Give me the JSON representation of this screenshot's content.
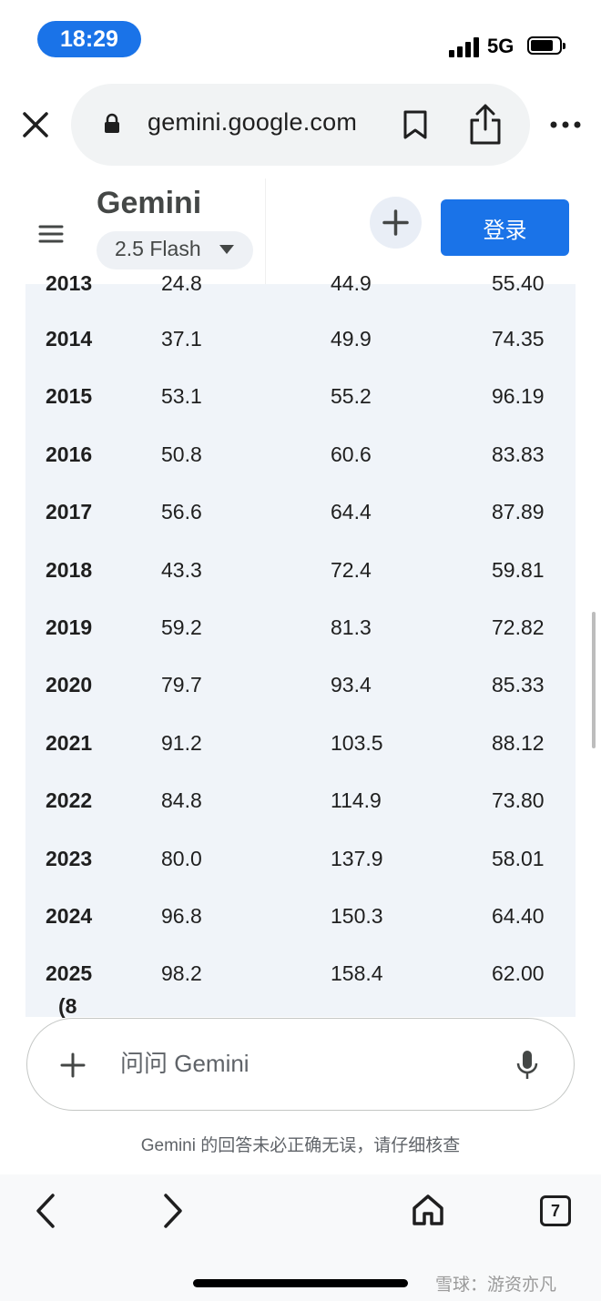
{
  "status_bar": {
    "time": "18:29",
    "network": "5G"
  },
  "browser": {
    "url": "gemini.google.com",
    "tabs_count": "7"
  },
  "header": {
    "title": "Gemini",
    "model": "2.5 Flash",
    "login_label": "登录"
  },
  "table": {
    "partial_top_row": {
      "year": "2013",
      "c1": "24.8",
      "c2": "44.9",
      "c3": "55.40"
    },
    "rows": [
      {
        "year": "2014",
        "c1": "37.1",
        "c2": "49.9",
        "c3": "74.35"
      },
      {
        "year": "2015",
        "c1": "53.1",
        "c2": "55.2",
        "c3": "96.19"
      },
      {
        "year": "2016",
        "c1": "50.8",
        "c2": "60.6",
        "c3": "83.83"
      },
      {
        "year": "2017",
        "c1": "56.6",
        "c2": "64.4",
        "c3": "87.89"
      },
      {
        "year": "2018",
        "c1": "43.3",
        "c2": "72.4",
        "c3": "59.81"
      },
      {
        "year": "2019",
        "c1": "59.2",
        "c2": "81.3",
        "c3": "72.82"
      },
      {
        "year": "2020",
        "c1": "79.7",
        "c2": "93.4",
        "c3": "85.33"
      },
      {
        "year": "2021",
        "c1": "91.2",
        "c2": "103.5",
        "c3": "88.12"
      },
      {
        "year": "2022",
        "c1": "84.8",
        "c2": "114.9",
        "c3": "73.80"
      },
      {
        "year": "2023",
        "c1": "80.0",
        "c2": "137.9",
        "c3": "58.01"
      },
      {
        "year": "2024",
        "c1": "96.8",
        "c2": "150.3",
        "c3": "64.40"
      },
      {
        "year": "2025",
        "c1": "98.2",
        "c2": "158.4",
        "c3": "62.00"
      }
    ],
    "last_row_continuation": "(8"
  },
  "input": {
    "placeholder": "问问 Gemini"
  },
  "disclaimer": "Gemini 的回答未必正确无误，请仔细核查",
  "watermark": "雪球：游资亦凡",
  "icons": [
    "close-icon",
    "lock-icon",
    "bookmark-icon",
    "share-icon",
    "more-icon",
    "menu-icon",
    "caret-down-icon",
    "plus-icon",
    "mic-icon",
    "back-icon",
    "forward-icon",
    "home-icon"
  ]
}
